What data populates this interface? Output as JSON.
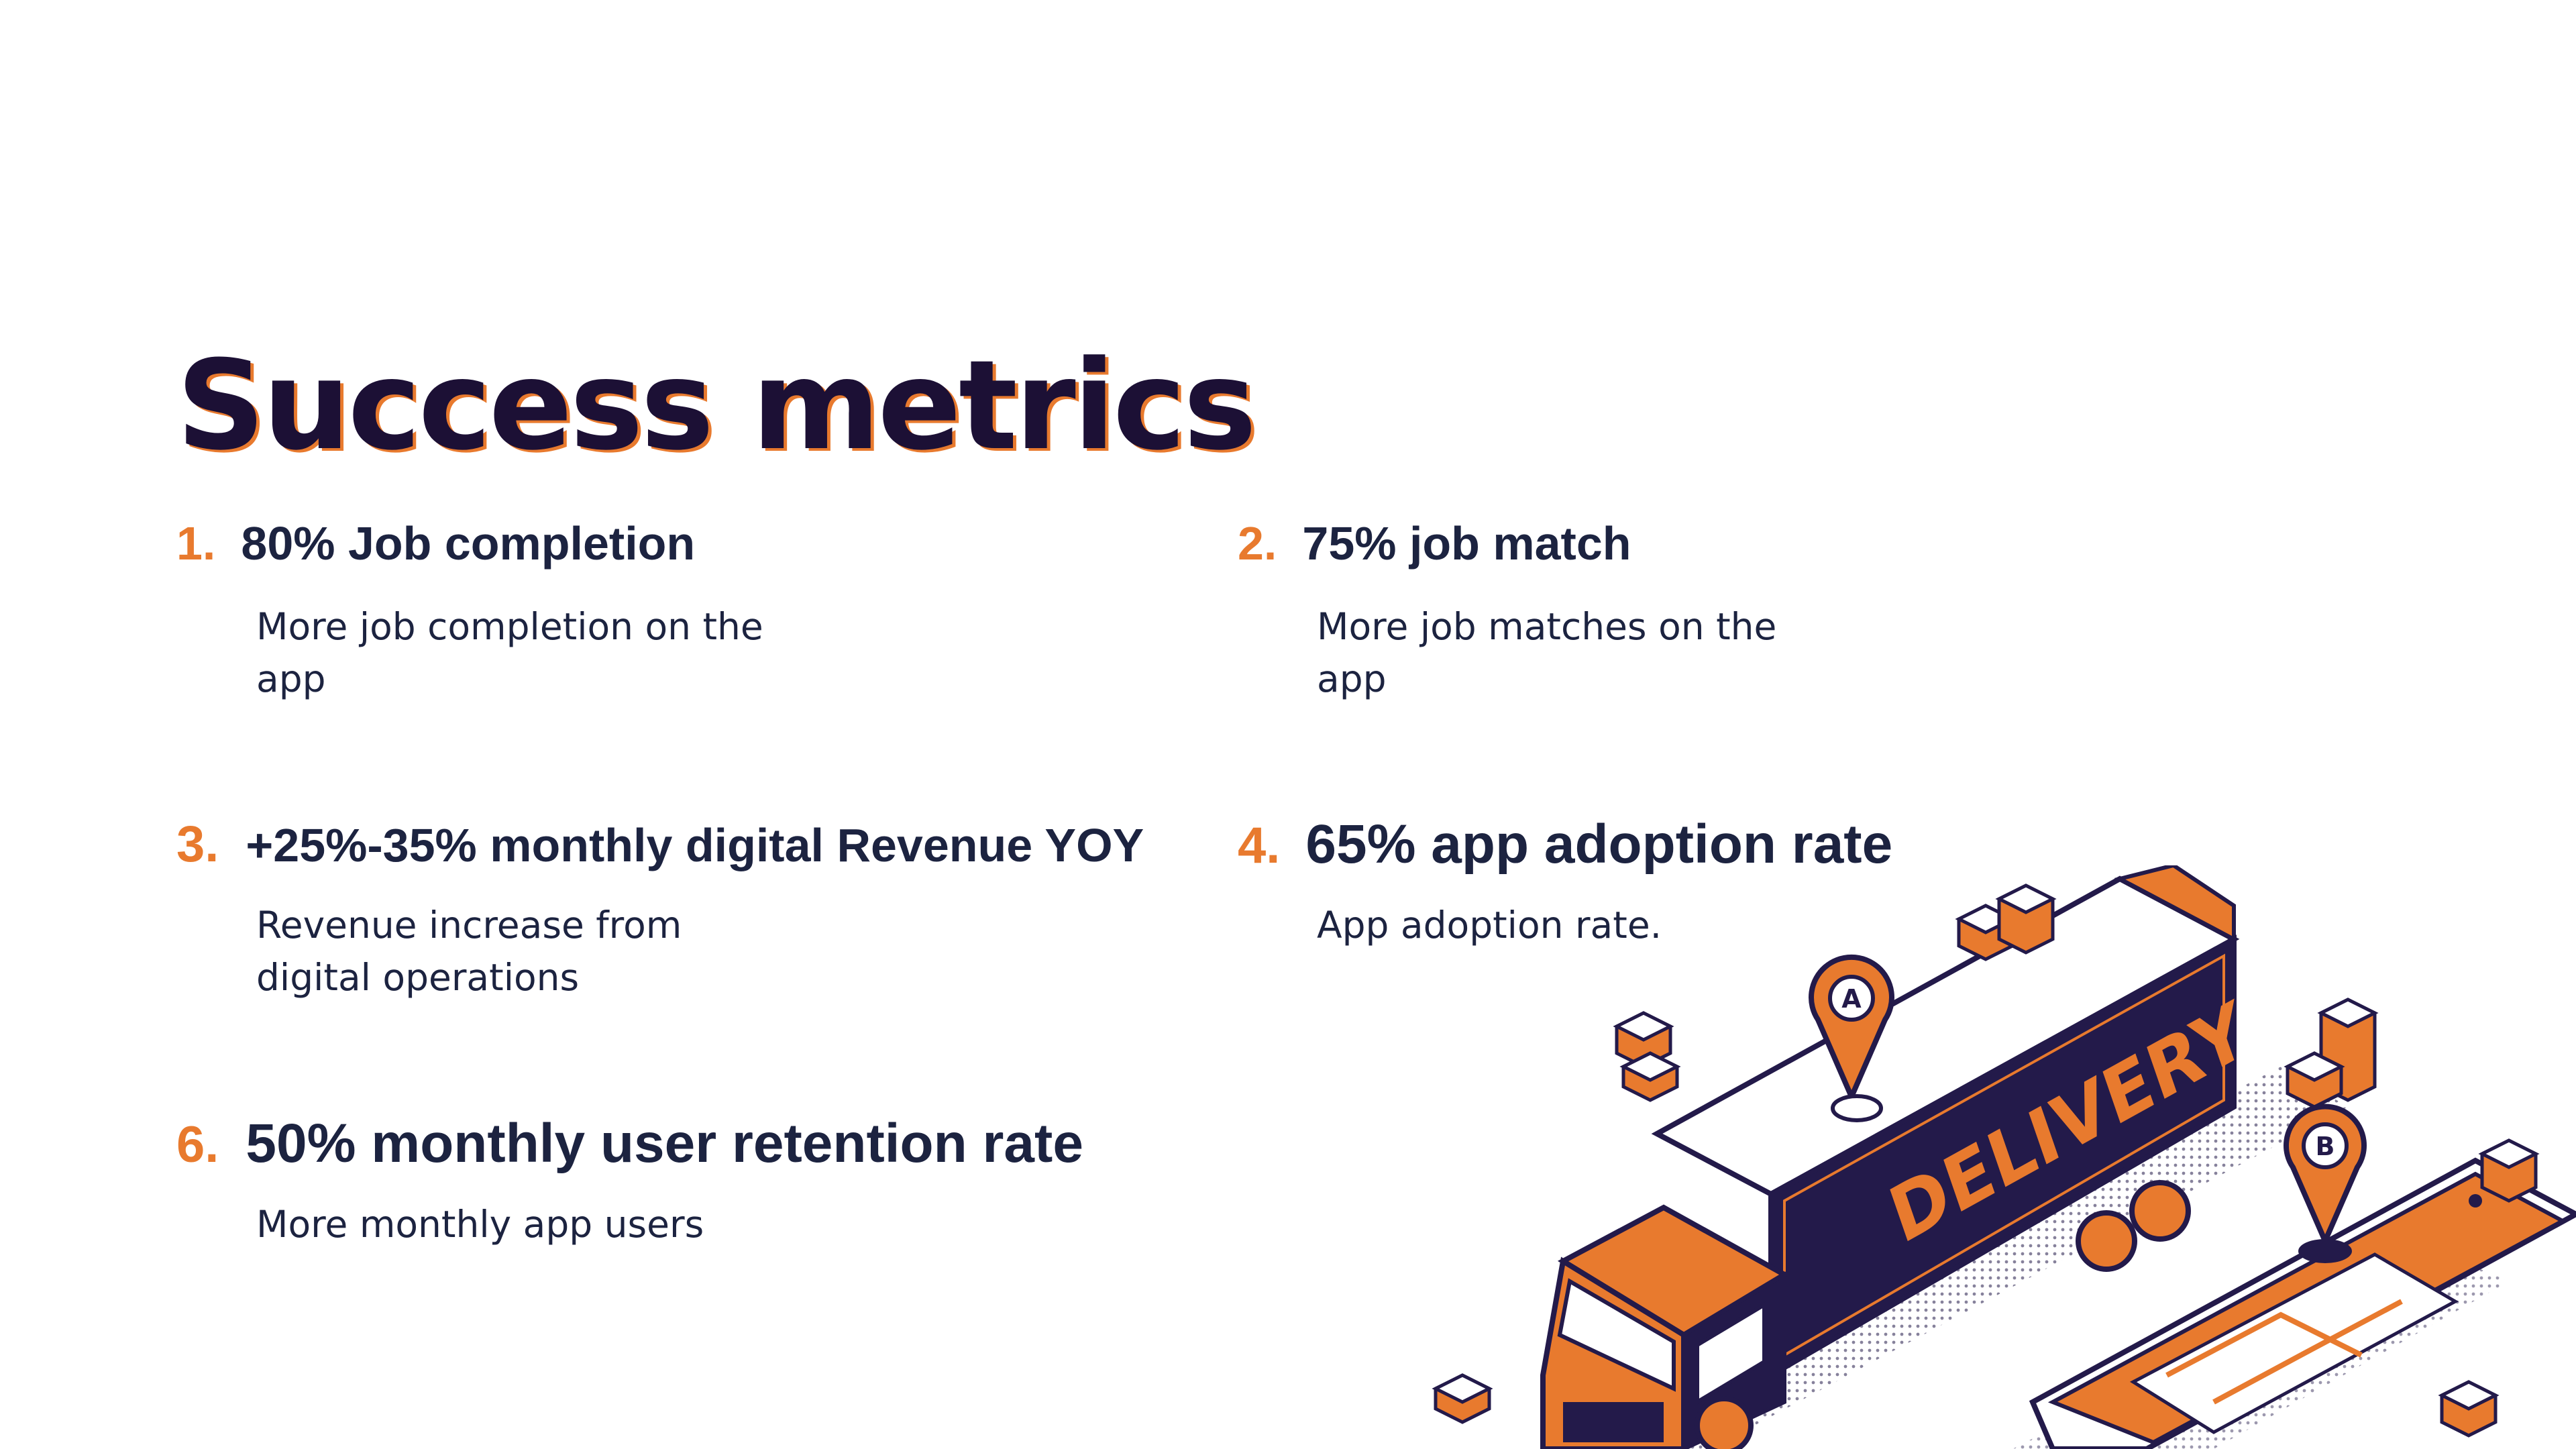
{
  "title": "Success metrics",
  "metrics": [
    {
      "number": "1.",
      "heading": "80% Job completion",
      "description": "More job completion on the app"
    },
    {
      "number": "2.",
      "heading": "75% job match",
      "description": "More job matches on the app"
    },
    {
      "number": "3.",
      "heading": "+25%-35% monthly digital Revenue YOY",
      "description": "Revenue increase from digital operations"
    },
    {
      "number": "4.",
      "heading": "65% app adoption rate",
      "description": "App adoption rate."
    },
    {
      "number": "6.",
      "heading": "50% monthly user retention rate",
      "description": "More monthly app users"
    }
  ],
  "illustration": {
    "truck_label": "DELIVERY",
    "pin_a": "A",
    "pin_b": "B",
    "colors": {
      "orange": "#e87a2e",
      "navy": "#231a4a",
      "white": "#ffffff"
    }
  }
}
